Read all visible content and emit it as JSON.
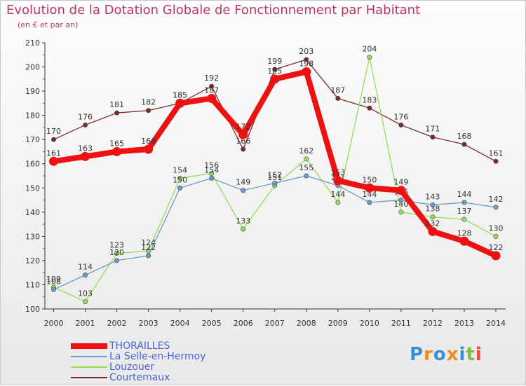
{
  "colors": {
    "thorailles": "#ee1111",
    "selle": "#6a9ccc",
    "louzouer": "#99dd55",
    "courtemaux": "#7a2a2a",
    "title": "#c0336b",
    "legend_text": "#4a66cc"
  },
  "logo": {
    "letters": [
      "P",
      "r",
      "o",
      "x",
      "i",
      "t",
      "i"
    ],
    "colors": [
      "#3b8fd9",
      "#f08c1f",
      "#3b8fd9",
      "#f08c1f",
      "#3b8fd9",
      "#7cbf3c",
      "#e94c3a"
    ]
  },
  "chart_data": {
    "type": "line",
    "title": "Evolution de la Dotation Globale de Fonctionnement par Habitant",
    "subtitle": "(en € et par an)",
    "xlabel": "",
    "ylabel": "",
    "ylim": [
      100,
      210
    ],
    "yticks": [
      100,
      110,
      120,
      130,
      140,
      150,
      160,
      170,
      180,
      190,
      200,
      210
    ],
    "grid": false,
    "legend_position": "bottom-left",
    "categories": [
      "2000",
      "2001",
      "2002",
      "2003",
      "2004",
      "2005",
      "2006",
      "2007",
      "2008",
      "2009",
      "2010",
      "2011",
      "2012",
      "2013",
      "2014"
    ],
    "series": [
      {
        "name": "THORAILLES",
        "color_key": "thorailles",
        "values": [
          161,
          163,
          165,
          166,
          185,
          187,
          172,
          195,
          198,
          153,
          150,
          149,
          132,
          128,
          122
        ]
      },
      {
        "name": "La Selle-en-Hermoy",
        "color_key": "selle",
        "values": [
          108,
          114,
          120,
          122,
          150,
          154,
          149,
          152,
          155,
          151,
          144,
          145,
          143,
          144,
          142
        ]
      },
      {
        "name": "Louzouer",
        "color_key": "louzouer",
        "values": [
          109,
          103,
          123,
          124,
          154,
          156,
          133,
          151,
          162,
          144,
          204,
          140,
          138,
          137,
          130
        ]
      },
      {
        "name": "Courtemaux",
        "color_key": "courtemaux",
        "values": [
          170,
          176,
          181,
          182,
          185,
          192,
          166,
          199,
          203,
          187,
          183,
          176,
          171,
          168,
          161
        ]
      }
    ]
  }
}
